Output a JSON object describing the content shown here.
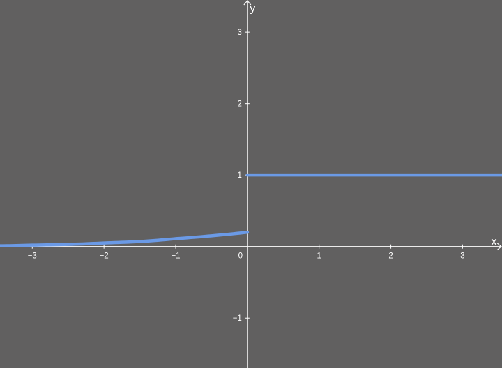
{
  "chart_data": {
    "type": "line",
    "title": "",
    "xlabel": "x",
    "ylabel": "y",
    "xlim": [
      -3.45,
      3.55
    ],
    "ylim": [
      -1.7,
      3.45
    ],
    "grid": false,
    "legend": "none",
    "background_color": "#616060",
    "axis_color": "#ffffff",
    "x_ticks": [
      -3,
      -2,
      -1,
      0,
      1,
      2,
      3
    ],
    "x_tick_labels": [
      "−3",
      "−2",
      "−1",
      "0",
      "1",
      "2",
      "3"
    ],
    "y_ticks": [
      -1,
      1,
      2,
      3
    ],
    "y_tick_labels": [
      "−1",
      "1",
      "2",
      "3"
    ],
    "series": [
      {
        "color": "#6b9ae6",
        "x": [
          -3.45,
          -3.0,
          -2.5,
          -2.0,
          -1.5,
          -1.0,
          -0.5,
          0.0
        ],
        "y": [
          0.01,
          0.02,
          0.03,
          0.05,
          0.07,
          0.11,
          0.15,
          0.2
        ]
      },
      {
        "color": "#6b9ae6",
        "x": [
          0.0,
          3.55
        ],
        "y": [
          1.0,
          1.0
        ]
      }
    ]
  }
}
